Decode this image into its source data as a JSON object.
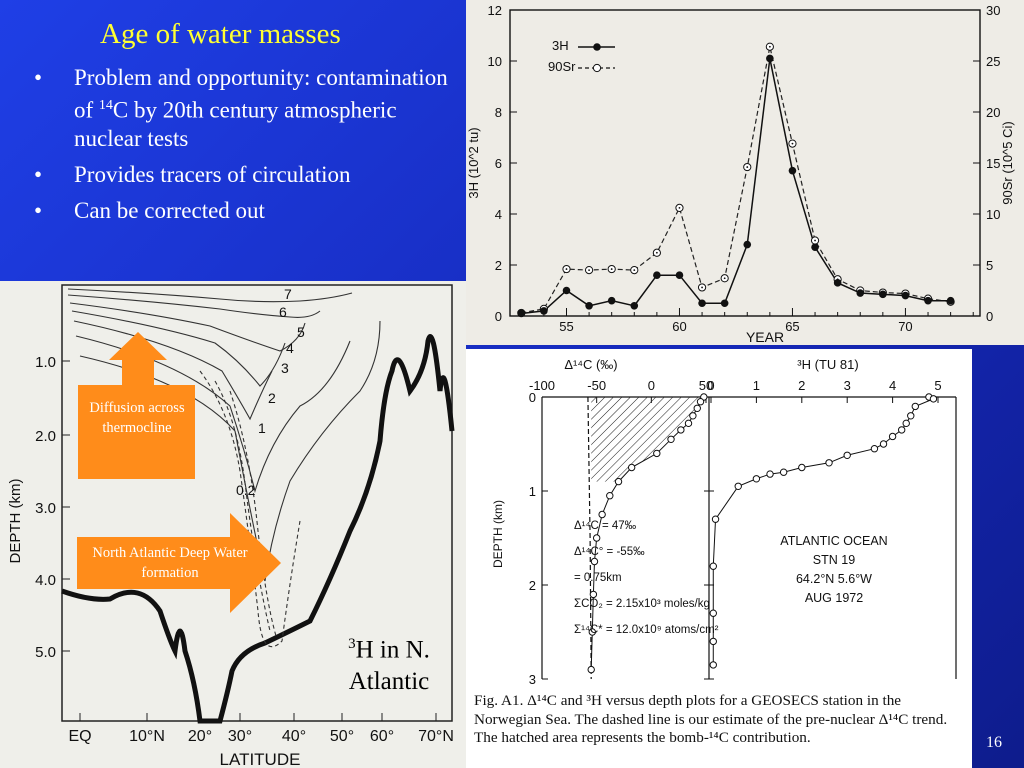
{
  "slide": {
    "title": "Age of water masses",
    "bullets": [
      "Problem and opportunity: contamination of",
      "C by 20th century atmospheric nuclear tests",
      "Provides tracers of circulation",
      "Can be corrected out"
    ],
    "superscript_14": "14",
    "slide_number": "16",
    "h3_label_sup": "3",
    "h3_label_line1": "H in N.",
    "h3_label_line2": "Atlantic",
    "arrow_up_label": "Diffusion across thermocline",
    "arrow_right_label": "North Atlantic Deep Water formation",
    "colors": {
      "title": "#ffff33",
      "background": "#1f3fe6",
      "arrow": "#ff8c1a"
    }
  },
  "chart_data": [
    {
      "type": "line",
      "title": "",
      "xlabel": "YEAR",
      "ylabel_left": "3H (10^2 tu)",
      "ylabel_right": "90Sr (10^5 Ci)",
      "xlim": [
        52.5,
        73.3
      ],
      "ylim_left": [
        0,
        12
      ],
      "ylim_right": [
        0,
        30
      ],
      "x_ticks": [
        55,
        60,
        65,
        70
      ],
      "y_ticks_left": [
        0,
        2,
        4,
        6,
        8,
        10,
        12
      ],
      "y_ticks_right": [
        0,
        5,
        10,
        15,
        20,
        25,
        30
      ],
      "legend": [
        "3H",
        "90Sr"
      ],
      "legend_placement": "top-left",
      "series": [
        {
          "name": "3H",
          "marker": "filled-circle",
          "style": "solid",
          "x": [
            53,
            54,
            55,
            56,
            57,
            58,
            59,
            60,
            61,
            62,
            63,
            64,
            65,
            66,
            67,
            68,
            69,
            70,
            71,
            72
          ],
          "y": [
            0.1,
            0.2,
            1.0,
            0.4,
            0.6,
            0.4,
            1.6,
            1.6,
            0.5,
            0.5,
            2.8,
            10.1,
            5.7,
            2.7,
            1.3,
            0.9,
            0.85,
            0.8,
            0.6,
            0.6
          ]
        },
        {
          "name": "90Sr",
          "marker": "open-circle",
          "style": "dashed",
          "x": [
            53,
            54,
            55,
            56,
            57,
            58,
            59,
            60,
            61,
            62,
            63,
            64,
            65,
            66,
            67,
            68,
            69,
            70,
            71,
            72
          ],
          "y": [
            0.3,
            0.7,
            4.6,
            4.5,
            4.6,
            4.5,
            6.2,
            10.6,
            2.8,
            3.7,
            14.6,
            26.4,
            16.9,
            7.4,
            3.6,
            2.5,
            2.3,
            2.2,
            1.7,
            1.4
          ]
        }
      ]
    },
    {
      "type": "contour",
      "title": "",
      "xlabel": "LATITUDE",
      "ylabel": "DEPTH (km)",
      "x_ticks": [
        "EQ",
        "10°N",
        "20°",
        "30°",
        "40°",
        "50°",
        "60°",
        "70°N"
      ],
      "y_ticks": [
        "1.0",
        "2.0",
        "3.0",
        "4.0",
        "5.0"
      ],
      "contour_labels": [
        "7",
        "6",
        "5",
        "4",
        "3",
        "2",
        "1",
        "0.2"
      ]
    },
    {
      "type": "scatter",
      "title": "",
      "panels": [
        {
          "xlabel": "Δ¹⁴C (‰)",
          "ylabel": "DEPTH (km)",
          "x_ticks": [
            "-100",
            "-50",
            "0",
            "50"
          ],
          "y_ticks": [
            "0",
            "1",
            "2",
            "3"
          ],
          "xlim": [
            -100,
            50
          ],
          "ylim": [
            0,
            3
          ],
          "x": [
            48,
            45,
            42,
            38,
            34,
            27,
            18,
            5,
            -18,
            -30,
            -38,
            -45,
            -50,
            -52,
            -53,
            -54,
            -55
          ],
          "y": [
            0.0,
            0.05,
            0.12,
            0.2,
            0.28,
            0.35,
            0.45,
            0.6,
            0.75,
            0.9,
            1.05,
            1.25,
            1.5,
            1.75,
            2.1,
            2.5,
            2.9
          ],
          "annotations": [
            "Δ¹⁴C = 47‰",
            "Δ¹⁴C° = -55‰",
            "= 0.75km",
            "ΣCO₂ = 2.15x10³ moles/kg",
            "Σ¹⁴C* = 12.0x10⁹ atoms/cm²"
          ]
        },
        {
          "xlabel": "³H (TU 81)",
          "x_ticks": [
            "0",
            "1",
            "2",
            "3",
            "4",
            "5"
          ],
          "xlim": [
            0,
            5
          ],
          "ylim": [
            0,
            3
          ],
          "x": [
            4.8,
            4.9,
            4.5,
            4.4,
            4.3,
            4.2,
            4.0,
            3.8,
            3.6,
            3.0,
            2.6,
            2.0,
            1.6,
            1.3,
            1.0,
            0.6,
            0.1,
            0.05,
            0.05,
            0.05,
            0.05
          ],
          "y": [
            0.0,
            0.02,
            0.1,
            0.2,
            0.28,
            0.35,
            0.42,
            0.5,
            0.55,
            0.62,
            0.7,
            0.75,
            0.8,
            0.82,
            0.87,
            0.95,
            1.3,
            1.8,
            2.3,
            2.6,
            2.85
          ],
          "annotations": [
            "ATLANTIC OCEAN",
            "STN 19",
            "64.2°N 5.6°W",
            "AUG 1972"
          ]
        }
      ],
      "caption": "Fig. A1.   Δ¹⁴C and ³H versus depth plots for a GEOSECS station in the Norwegian Sea. The dashed line is our estimate of the pre-nuclear Δ¹⁴C trend. The hatched area represents the bomb-¹⁴C contribution."
    }
  ]
}
